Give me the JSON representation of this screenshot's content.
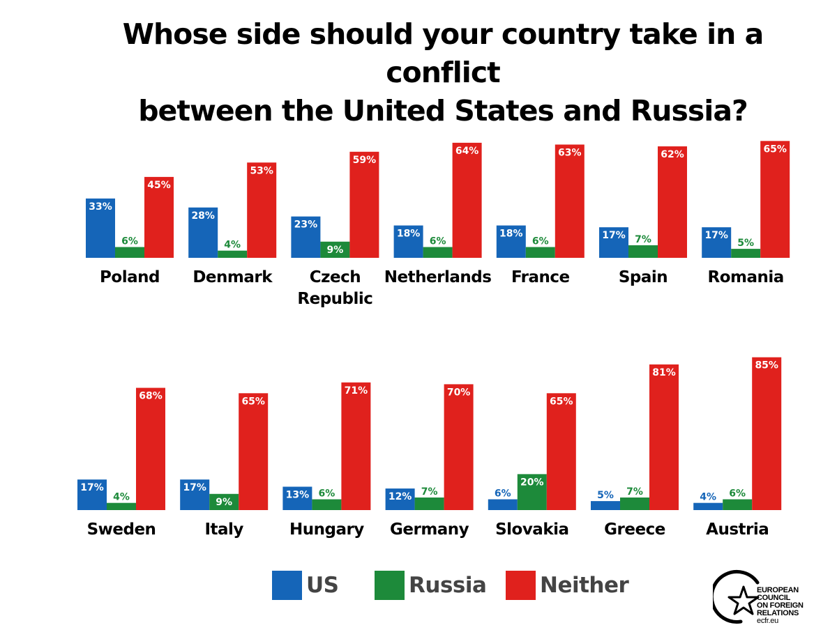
{
  "chart_data": {
    "type": "bar",
    "title": "Whose side should your country take in a conflict between the United States and Russia?",
    "title_lines": [
      "Whose side should your country take in a conflict",
      "between the United States and Russia?"
    ],
    "series": [
      {
        "name": "US",
        "color": "#1565b8"
      },
      {
        "name": "Russia",
        "color": "#1d8a3a"
      },
      {
        "name": "Neither",
        "color": "#e0211d"
      }
    ],
    "countries": [
      {
        "name": "Poland",
        "label_lines": [
          "Poland"
        ],
        "US": 33,
        "Russia": 6,
        "Neither": 45
      },
      {
        "name": "Denmark",
        "label_lines": [
          "Denmark"
        ],
        "US": 28,
        "Russia": 4,
        "Neither": 53
      },
      {
        "name": "Czech Republic",
        "label_lines": [
          "Czech",
          "Republic"
        ],
        "US": 23,
        "Russia": 9,
        "Neither": 59
      },
      {
        "name": "Netherlands",
        "label_lines": [
          "Netherlands"
        ],
        "US": 18,
        "Russia": 6,
        "Neither": 64
      },
      {
        "name": "France",
        "label_lines": [
          "France"
        ],
        "US": 18,
        "Russia": 6,
        "Neither": 63
      },
      {
        "name": "Spain",
        "label_lines": [
          "Spain"
        ],
        "US": 17,
        "Russia": 7,
        "Neither": 62
      },
      {
        "name": "Romania",
        "label_lines": [
          "Romania"
        ],
        "US": 17,
        "Russia": 5,
        "Neither": 65
      },
      {
        "name": "Sweden",
        "label_lines": [
          "Sweden"
        ],
        "US": 17,
        "Russia": 4,
        "Neither": 68
      },
      {
        "name": "Italy",
        "label_lines": [
          "Italy"
        ],
        "US": 17,
        "Russia": 9,
        "Neither": 65
      },
      {
        "name": "Hungary",
        "label_lines": [
          "Hungary"
        ],
        "US": 13,
        "Russia": 6,
        "Neither": 71
      },
      {
        "name": "Germany",
        "label_lines": [
          "Germany"
        ],
        "US": 12,
        "Russia": 7,
        "Neither": 70
      },
      {
        "name": "Slovakia",
        "label_lines": [
          "Slovakia"
        ],
        "US": 6,
        "Russia": 20,
        "Neither": 65
      },
      {
        "name": "Greece",
        "label_lines": [
          "Greece"
        ],
        "US": 5,
        "Russia": 7,
        "Neither": 81
      },
      {
        "name": "Austria",
        "label_lines": [
          "Austria"
        ],
        "US": 4,
        "Russia": 6,
        "Neither": 85
      }
    ],
    "value_suffix": "%",
    "ylim": [
      0,
      100
    ],
    "grid": false,
    "legend_position": "bottom"
  },
  "logo": {
    "lines": [
      "EUROPEAN",
      "COUNCIL",
      "ON FOREIGN",
      "RELATIONS"
    ],
    "url": "ecfr.eu"
  }
}
